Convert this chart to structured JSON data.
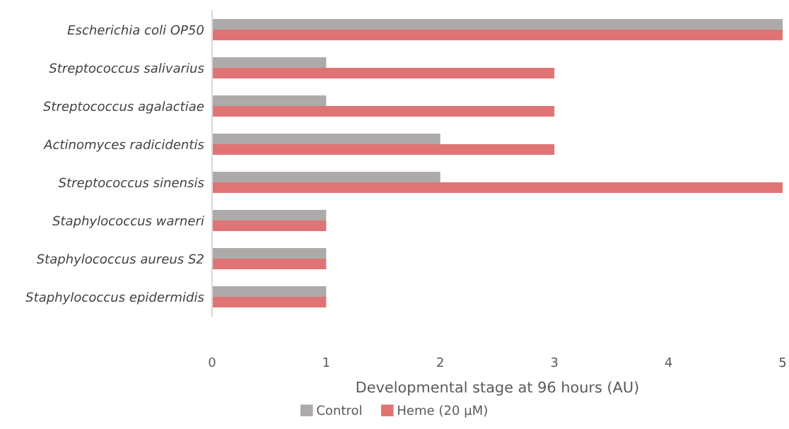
{
  "chart_data": {
    "type": "bar",
    "orientation": "horizontal",
    "xlabel": "Developmental stage at 96 hours (AU)",
    "categories": [
      "Escherichia coli OP50",
      "Streptococcus salivarius",
      "Streptococcus agalactiae",
      "Actinomyces radicidentis",
      "Streptococcus sinensis",
      "Staphylococcus warneri",
      "Staphylococcus aureus S2",
      "Staphylococcus epidermidis"
    ],
    "series": [
      {
        "name": "Control",
        "color": "#aeaaaa",
        "values": [
          5,
          1,
          1,
          2,
          2,
          1,
          1,
          1
        ]
      },
      {
        "name": "Heme (20 µM)",
        "color": "#e07474",
        "values": [
          5,
          3,
          3,
          3,
          5,
          1,
          1,
          1
        ]
      }
    ],
    "xlim": [
      0,
      5
    ],
    "xticks": [
      0,
      1,
      2,
      3,
      4,
      5
    ],
    "grid": false,
    "legend": "bottom"
  }
}
